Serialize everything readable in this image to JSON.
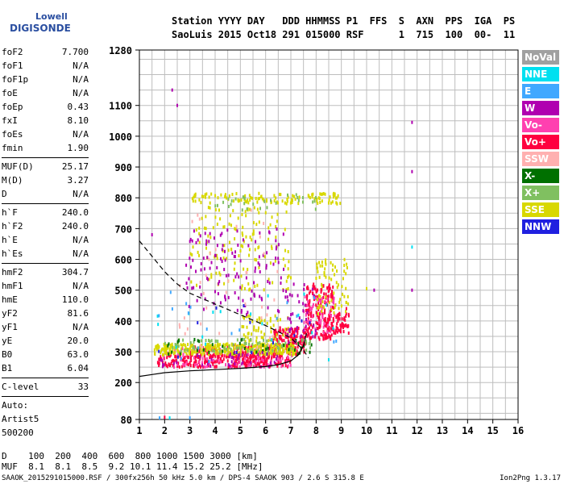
{
  "logo": {
    "line1": "Lowell",
    "line2": "DIGISONDE"
  },
  "header": {
    "labels": "Station YYYY DAY   DDD HHMMSS P1  FFS  S  AXN  PPS  IGA  PS",
    "values": "SaoLuis 2015 Oct18 291 015000 RSF      1  715  100  00-  11"
  },
  "params_group1": [
    {
      "k": "foF2",
      "v": "7.700"
    },
    {
      "k": "foF1",
      "v": "N/A"
    },
    {
      "k": "foF1p",
      "v": "N/A"
    },
    {
      "k": "foE",
      "v": "N/A"
    },
    {
      "k": "foEp",
      "v": "0.43"
    },
    {
      "k": "fxI",
      "v": "8.10"
    },
    {
      "k": "foEs",
      "v": "N/A"
    },
    {
      "k": "fmin",
      "v": "1.90"
    }
  ],
  "params_group2": [
    {
      "k": "MUF(D)",
      "v": "25.17"
    },
    {
      "k": "M(D)",
      "v": "3.27"
    },
    {
      "k": "D",
      "v": "N/A"
    }
  ],
  "params_group3": [
    {
      "k": "h`F",
      "v": "240.0"
    },
    {
      "k": "h`F2",
      "v": "240.0"
    },
    {
      "k": "h`E",
      "v": "N/A"
    },
    {
      "k": "h`Es",
      "v": "N/A"
    }
  ],
  "params_group4": [
    {
      "k": "hmF2",
      "v": "304.7"
    },
    {
      "k": "hmF1",
      "v": "N/A"
    },
    {
      "k": "hmE",
      "v": "110.0"
    },
    {
      "k": "yF2",
      "v": "81.6"
    },
    {
      "k": "yF1",
      "v": "N/A"
    },
    {
      "k": "yE",
      "v": "20.0"
    },
    {
      "k": "B0",
      "v": "63.0"
    },
    {
      "k": "B1",
      "v": "6.04"
    }
  ],
  "clevel": {
    "k": "C-level",
    "v": "33"
  },
  "auto": [
    "Auto:",
    "Artist5",
    "500200"
  ],
  "legend": [
    {
      "label": "NoVal",
      "color": "#a0a0a0"
    },
    {
      "label": "NNE",
      "color": "#00e0f0"
    },
    {
      "label": "E",
      "color": "#40a8ff"
    },
    {
      "label": "W",
      "color": "#b000b0"
    },
    {
      "label": "Vo-",
      "color": "#ff40b0"
    },
    {
      "label": "Vo+",
      "color": "#ff0040"
    },
    {
      "label": "SSW",
      "color": "#ffb0b0"
    },
    {
      "label": "X-",
      "color": "#007000"
    },
    {
      "label": "X+",
      "color": "#80c060"
    },
    {
      "label": "SSE",
      "color": "#d8d800"
    },
    {
      "label": "NNW",
      "color": "#2020e0"
    }
  ],
  "footer": {
    "d_row": "D    100  200  400  600  800 1000 1500 3000 [km]",
    "muf_row": "MUF  8.1  8.1  8.5  9.2 10.1 11.4 15.2 25.2 [MHz]",
    "file_line": "SAAOK_2015291015000.RSF / 300fx256h 50 kHz 5.0 km / DPS-4 SAAOK 903 / 2.6 S 315.8 E",
    "version": "Ion2Png 1.3.17"
  },
  "chart_data": {
    "type": "scatter",
    "title": "",
    "xlabel": "",
    "ylabel": "",
    "xlim": [
      1,
      16
    ],
    "ylim": [
      80,
      1280
    ],
    "x_ticks": [
      1,
      2,
      3,
      4,
      5,
      6,
      7,
      8,
      9,
      10,
      11,
      12,
      13,
      14,
      15,
      16
    ],
    "y_ticks": [
      80,
      200,
      300,
      400,
      500,
      600,
      700,
      800,
      900,
      1000,
      1100,
      1280
    ],
    "grid": true,
    "legend_placement": "right",
    "series": [
      {
        "name": "Vo+",
        "color": "#ff0040",
        "clusters": [
          {
            "x": [
              1.7,
              7.0
            ],
            "y": [
              250,
              290
            ],
            "n": 260
          },
          {
            "x": [
              3.0,
              6.5
            ],
            "y": [
              280,
              320
            ],
            "n": 120
          },
          {
            "x": [
              6.3,
              7.6
            ],
            "y": [
              290,
              380
            ],
            "n": 140
          },
          {
            "x": [
              7.6,
              8.7
            ],
            "y": [
              340,
              520
            ],
            "n": 200
          },
          {
            "x": [
              8.7,
              9.3
            ],
            "y": [
              360,
              430
            ],
            "n": 50
          }
        ]
      },
      {
        "name": "Vo-",
        "color": "#ff40b0",
        "clusters": [
          {
            "x": [
              1.8,
              7.2
            ],
            "y": [
              250,
              310
            ],
            "n": 90
          },
          {
            "x": [
              7.5,
              8.8
            ],
            "y": [
              360,
              480
            ],
            "n": 60
          }
        ]
      },
      {
        "name": "SSE",
        "color": "#d8d800",
        "clusters": [
          {
            "x": [
              1.6,
              7.2
            ],
            "y": [
              290,
              325
            ],
            "n": 320
          },
          {
            "x": [
              3.0,
              9.0
            ],
            "y": [
              780,
              815
            ],
            "n": 120
          },
          {
            "x": [
              3.0,
              7.0
            ],
            "y": [
              500,
              770
            ],
            "n": 140
          },
          {
            "x": [
              8.0,
              9.3
            ],
            "y": [
              420,
              600
            ],
            "n": 70
          },
          {
            "x": [
              5.0,
              7.0
            ],
            "y": [
              320,
              420
            ],
            "n": 60
          }
        ]
      },
      {
        "name": "X+",
        "color": "#80c060",
        "clusters": [
          {
            "x": [
              2.0,
              8.0
            ],
            "y": [
              300,
              340
            ],
            "n": 80
          },
          {
            "x": [
              4.0,
              8.0
            ],
            "y": [
              760,
              810
            ],
            "n": 30
          }
        ]
      },
      {
        "name": "X-",
        "color": "#007000",
        "clusters": [
          {
            "x": [
              1.8,
              8.0
            ],
            "y": [
              290,
              340
            ],
            "n": 40
          }
        ]
      },
      {
        "name": "W",
        "color": "#b000b0",
        "clusters": [
          {
            "x": [
              2.8,
              6.8
            ],
            "y": [
              420,
              700
            ],
            "n": 130
          },
          {
            "x": [
              6.8,
              8.0
            ],
            "y": [
              330,
              520
            ],
            "n": 40
          },
          {
            "x": [
              1.8,
              6.5
            ],
            "y": [
              250,
              300
            ],
            "n": 40
          }
        ]
      },
      {
        "name": "NNE",
        "color": "#00e0f0",
        "clusters": [
          {
            "x": [
              1.7,
              9.0
            ],
            "y": [
              260,
              500
            ],
            "n": 18
          }
        ]
      },
      {
        "name": "E",
        "color": "#40a8ff",
        "clusters": [
          {
            "x": [
              1.7,
              9.0
            ],
            "y": [
              260,
              500
            ],
            "n": 18
          }
        ]
      },
      {
        "name": "SSW",
        "color": "#ffb0b0",
        "clusters": [
          {
            "x": [
              2.5,
              6.5
            ],
            "y": [
              300,
              760
            ],
            "n": 40
          }
        ]
      },
      {
        "name": "NNW",
        "color": "#2020e0",
        "clusters": [
          {
            "x": [
              1.7,
              8.5
            ],
            "y": [
              260,
              450
            ],
            "n": 12
          }
        ]
      }
    ],
    "isolated_points": [
      {
        "x": 11.8,
        "y": 1045,
        "color": "#b000b0"
      },
      {
        "x": 11.8,
        "y": 885,
        "color": "#b000b0"
      },
      {
        "x": 11.8,
        "y": 500,
        "color": "#b000b0"
      },
      {
        "x": 11.8,
        "y": 640,
        "color": "#00e0f0"
      },
      {
        "x": 2.3,
        "y": 1150,
        "color": "#b000b0"
      },
      {
        "x": 2.5,
        "y": 1100,
        "color": "#b000b0"
      },
      {
        "x": 10.3,
        "y": 500,
        "color": "#b000b0"
      },
      {
        "x": 10.0,
        "y": 505,
        "color": "#d8d800"
      },
      {
        "x": 1.8,
        "y": 85,
        "color": "#40a8ff"
      },
      {
        "x": 2.2,
        "y": 85,
        "color": "#00e0f0"
      },
      {
        "x": 2.0,
        "y": 87,
        "color": "#ff0040"
      },
      {
        "x": 3.0,
        "y": 85,
        "color": "#40a8ff"
      },
      {
        "x": 1.5,
        "y": 680,
        "color": "#b000b0"
      },
      {
        "x": 9.2,
        "y": 440,
        "color": "#ff0040"
      }
    ],
    "profile_solid": {
      "x": [
        1.0,
        1.5,
        2.0,
        3.0,
        4.0,
        5.0,
        6.0,
        6.5,
        7.0,
        7.3,
        7.5,
        7.62
      ],
      "y": [
        220,
        226,
        232,
        238,
        242,
        246,
        252,
        258,
        270,
        290,
        320,
        360
      ]
    },
    "profile_dashed": {
      "x": [
        1.0,
        1.5,
        2.0,
        2.5,
        3.0,
        4.0,
        5.0,
        6.0,
        6.5,
        7.0,
        7.5,
        7.7
      ],
      "y": [
        660,
        610,
        560,
        520,
        490,
        455,
        420,
        385,
        365,
        345,
        305,
        280
      ]
    }
  }
}
